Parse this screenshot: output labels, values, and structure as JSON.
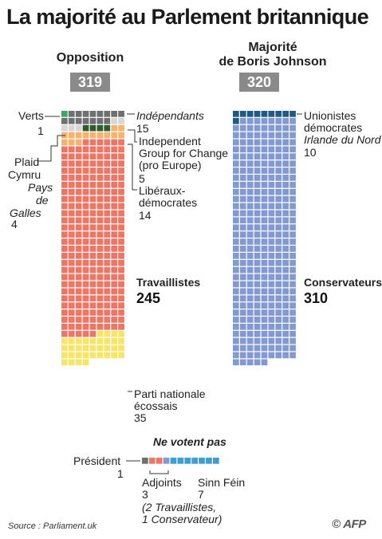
{
  "title": "La majorité au Parlement britannique",
  "opposition": {
    "heading": "Opposition",
    "total": "319"
  },
  "majority": {
    "heading_line1": "Majorité",
    "heading_line2": "de Boris Johnson",
    "total": "320"
  },
  "labels": {
    "verts": "Verts",
    "verts_n": "1",
    "independants": "Indépendants",
    "independants_n": "15",
    "igc_1": "Independent",
    "igc_2": "Group for Change",
    "igc_3": "(pro Europe)",
    "igc_n": "5",
    "plaid_1": "Plaid",
    "plaid_2": "Cymru",
    "plaid_3": "Pays",
    "plaid_4": "de",
    "plaid_5": "Galles",
    "plaid_n": "4",
    "libdem_1": "Libéraux-",
    "libdem_2": "démocrates",
    "libdem_n": "14",
    "lab": "Travaillistes",
    "lab_n": "245",
    "snp_1": "Parti nationale",
    "snp_2": "écossais",
    "snp_n": "35",
    "dup_1": "Unionistes",
    "dup_2": "démocrates",
    "dup_3": "Irlande du Nord",
    "dup_n": "10",
    "con": "Conservateurs",
    "con_n": "310",
    "novote": "Ne votent pas",
    "speaker": "Président",
    "speaker_n": "1",
    "deputies": "Adjoints",
    "deputies_n": "3",
    "deputies_note1": "(2 Travaillistes,",
    "deputies_note2": "1 Conservateur)",
    "sinnfein": "Sinn Féin",
    "sinnfein_n": "7"
  },
  "source": "Source : Parliament.uk",
  "logo": "AFP",
  "colors": {
    "green": "#3aa860",
    "independent": "#6d7070",
    "igc": "#d6d6d6",
    "plaid": "#2e5a2e",
    "libdem": "#f7b36e",
    "labour": "#ef7565",
    "snp": "#f6e566",
    "dup": "#1e5a82",
    "conservative": "#8399d2",
    "speaker": "#6d7070",
    "sinnfein": "#3e9ed3"
  },
  "chart_data": {
    "type": "waffle",
    "title": "La majorité au Parlement britannique",
    "groups": [
      {
        "name": "Opposition",
        "total": 319,
        "series": [
          {
            "name": "Verts",
            "value": 1
          },
          {
            "name": "Indépendants",
            "value": 15
          },
          {
            "name": "Independent Group for Change (pro Europe)",
            "value": 5
          },
          {
            "name": "Plaid Cymru Pays de Galles",
            "value": 4
          },
          {
            "name": "Libéraux-démocrates",
            "value": 14
          },
          {
            "name": "Travaillistes",
            "value": 245
          },
          {
            "name": "Parti nationale écossais",
            "value": 35
          }
        ]
      },
      {
        "name": "Majorité de Boris Johnson",
        "total": 320,
        "series": [
          {
            "name": "Unionistes démocrates Irlande du Nord",
            "value": 10
          },
          {
            "name": "Conservateurs",
            "value": 310
          }
        ]
      },
      {
        "name": "Ne votent pas",
        "series": [
          {
            "name": "Président",
            "value": 1
          },
          {
            "name": "Adjoints",
            "value": 3
          },
          {
            "name": "Sinn Féin",
            "value": 7
          }
        ]
      }
    ]
  }
}
